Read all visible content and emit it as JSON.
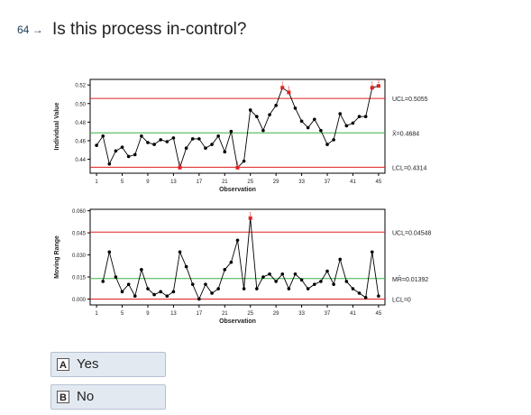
{
  "question": {
    "number": "64",
    "arrow": "→",
    "text": "Is this process in-control?"
  },
  "options": [
    {
      "letter": "A",
      "label": "Yes"
    },
    {
      "letter": "B",
      "label": "No"
    }
  ],
  "colors": {
    "data": "#000000",
    "center": "#3cb043",
    "limit": "#e02020",
    "flag": "#e02020",
    "option_bg": "#e3e9f1"
  },
  "chart_data": [
    {
      "type": "line",
      "ylabel": "Individual Value",
      "xlabel": "Observation",
      "x_ticks": [
        "1",
        "5",
        "9",
        "13",
        "17",
        "21",
        "25",
        "29",
        "33",
        "37",
        "41",
        "45"
      ],
      "y_ticks": [
        "0.44",
        "0.46",
        "0.48",
        "0.50",
        "0.52"
      ],
      "ylim": [
        0.425,
        0.526
      ],
      "xlim": [
        0,
        46
      ],
      "limits": [
        {
          "label": "UCL=0.5055",
          "value": 0.5055,
          "kind": "limit"
        },
        {
          "label": "X̄=0.4684",
          "value": 0.4684,
          "kind": "center"
        },
        {
          "label": "LCL=0.4314",
          "value": 0.4314,
          "kind": "limit"
        }
      ],
      "values": [
        0.455,
        0.465,
        0.435,
        0.449,
        0.453,
        0.443,
        0.445,
        0.465,
        0.458,
        0.456,
        0.461,
        0.459,
        0.463,
        0.431,
        0.452,
        0.462,
        0.462,
        0.452,
        0.456,
        0.465,
        0.448,
        0.47,
        0.431,
        0.438,
        0.493,
        0.486,
        0.471,
        0.488,
        0.498,
        0.517,
        0.512,
        0.495,
        0.481,
        0.474,
        0.483,
        0.471,
        0.456,
        0.461,
        0.489,
        0.476,
        0.479,
        0.486,
        0.486,
        0.517,
        0.519
      ],
      "flagged": [
        13,
        22,
        29,
        30,
        43,
        44
      ]
    },
    {
      "type": "line",
      "ylabel": "Moving Range",
      "xlabel": "Observation",
      "x_ticks": [
        "1",
        "5",
        "9",
        "13",
        "17",
        "21",
        "25",
        "29",
        "33",
        "37",
        "41",
        "45"
      ],
      "y_ticks": [
        "0.000",
        "0.015",
        "0.030",
        "0.045",
        "0.060"
      ],
      "ylim": [
        -0.004,
        0.061
      ],
      "xlim": [
        0,
        46
      ],
      "limits": [
        {
          "label": "UCL=0.04548",
          "value": 0.04548,
          "kind": "limit"
        },
        {
          "label": "MR̄=0.01392",
          "value": 0.01392,
          "kind": "center"
        },
        {
          "label": "LCL=0",
          "value": 0.0,
          "kind": "limit"
        }
      ],
      "values": [
        null,
        0.012,
        0.032,
        0.015,
        0.005,
        0.01,
        0.002,
        0.02,
        0.007,
        0.003,
        0.005,
        0.002,
        0.005,
        0.032,
        0.022,
        0.01,
        0.0,
        0.01,
        0.004,
        0.007,
        0.02,
        0.025,
        0.04,
        0.007,
        0.055,
        0.007,
        0.015,
        0.017,
        0.012,
        0.017,
        0.007,
        0.017,
        0.013,
        0.007,
        0.01,
        0.012,
        0.019,
        0.01,
        0.027,
        0.012,
        0.007,
        0.004,
        0.001,
        0.032,
        0.002
      ],
      "flagged": [
        24
      ]
    }
  ]
}
